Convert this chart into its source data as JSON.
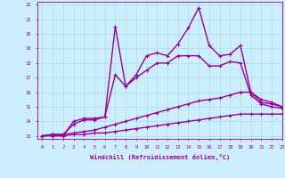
{
  "xlabel": "Windchill (Refroidissement éolien,°C)",
  "xlim": [
    -0.5,
    23
  ],
  "ylim": [
    12.8,
    22.2
  ],
  "xticks": [
    0,
    1,
    2,
    3,
    4,
    5,
    6,
    7,
    8,
    9,
    10,
    11,
    12,
    13,
    14,
    15,
    16,
    17,
    18,
    19,
    20,
    21,
    22,
    23
  ],
  "yticks": [
    13,
    14,
    15,
    16,
    17,
    18,
    19,
    20,
    21,
    22
  ],
  "bg_color": "#cceeff",
  "line_color": "#990099",
  "grid_color": "#aadddd",
  "series": [
    {
      "x": [
        0,
        1,
        2,
        3,
        4,
        5,
        6,
        7,
        8,
        9,
        10,
        11,
        12,
        13,
        14,
        15,
        16,
        17,
        18,
        19,
        20,
        21,
        22,
        23
      ],
      "y": [
        13.0,
        13.1,
        13.0,
        14.0,
        14.2,
        14.2,
        14.3,
        20.5,
        16.4,
        17.2,
        18.5,
        18.7,
        18.5,
        19.3,
        20.4,
        21.8,
        19.2,
        18.5,
        18.6,
        19.2,
        16.0,
        15.3,
        15.2,
        15.0
      ],
      "lw": 1.0
    },
    {
      "x": [
        0,
        1,
        2,
        3,
        4,
        5,
        6,
        7,
        8,
        9,
        10,
        11,
        12,
        13,
        14,
        15,
        16,
        17,
        18,
        19,
        20,
        21,
        22,
        23
      ],
      "y": [
        13.0,
        13.1,
        13.1,
        13.8,
        14.1,
        14.1,
        14.3,
        17.2,
        16.4,
        17.0,
        17.5,
        18.0,
        18.0,
        18.5,
        18.5,
        18.5,
        17.8,
        17.8,
        18.1,
        18.0,
        15.8,
        15.2,
        15.0,
        14.9
      ],
      "lw": 1.0
    },
    {
      "x": [
        0,
        1,
        2,
        3,
        4,
        5,
        6,
        7,
        8,
        9,
        10,
        11,
        12,
        13,
        14,
        15,
        16,
        17,
        18,
        19,
        20,
        21,
        22,
        23
      ],
      "y": [
        13.0,
        13.1,
        13.1,
        13.2,
        13.3,
        13.4,
        13.6,
        13.8,
        14.0,
        14.2,
        14.4,
        14.6,
        14.8,
        15.0,
        15.2,
        15.4,
        15.5,
        15.6,
        15.8,
        16.0,
        16.0,
        15.5,
        15.3,
        15.0
      ],
      "lw": 1.0
    },
    {
      "x": [
        0,
        1,
        2,
        3,
        4,
        5,
        6,
        7,
        8,
        9,
        10,
        11,
        12,
        13,
        14,
        15,
        16,
        17,
        18,
        19,
        20,
        21,
        22,
        23
      ],
      "y": [
        13.0,
        13.0,
        13.0,
        13.1,
        13.1,
        13.2,
        13.2,
        13.3,
        13.4,
        13.5,
        13.6,
        13.7,
        13.8,
        13.9,
        14.0,
        14.1,
        14.2,
        14.3,
        14.4,
        14.5,
        14.5,
        14.5,
        14.5,
        14.5
      ],
      "lw": 1.0
    }
  ]
}
